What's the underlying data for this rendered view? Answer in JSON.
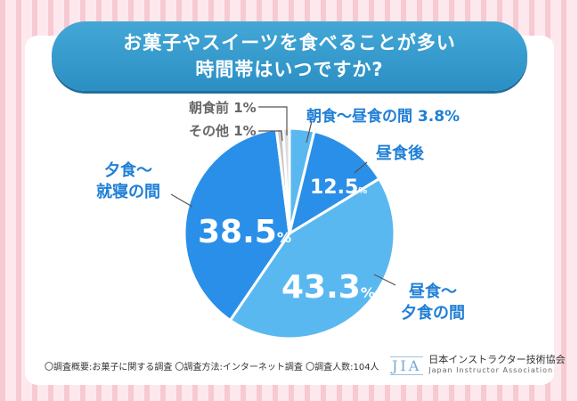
{
  "title": {
    "line1": "お菓子やスイーツを食べることが多い",
    "line2": "時間帯はいつですか?"
  },
  "chart_data": {
    "type": "pie",
    "start_angle_deg": 0,
    "slices": [
      {
        "label": "朝食〜昼食の間",
        "value": 3.8,
        "value_text": "3.8%",
        "color": "#5ab8f0"
      },
      {
        "label": "昼食後",
        "value": 12.5,
        "value_text": "12.5",
        "color": "#2a8fe8"
      },
      {
        "label": "昼食〜夕食の間",
        "value": 43.3,
        "value_text": "43.3",
        "color": "#5ab8f0"
      },
      {
        "label": "夕食〜就寝の間",
        "value": 38.5,
        "value_text": "38.5",
        "color": "#2a8fe8"
      },
      {
        "label": "その他",
        "value": 1,
        "value_text": "1%",
        "color": "#c8c8c8"
      },
      {
        "label": "朝食前",
        "value": 1,
        "value_text": "1%",
        "color": "#dcdcdc"
      }
    ],
    "pct_symbol": "%"
  },
  "labels": {
    "breakfast_lunch": "朝食〜昼食の間 3.8%",
    "after_lunch": "昼食後",
    "lunch_dinner_1": "昼食〜",
    "lunch_dinner_2": "夕食の間",
    "dinner_bed_1": "夕食〜",
    "dinner_bed_2": "就寝の間",
    "before_breakfast_name": "朝食前",
    "before_breakfast_value": "1%",
    "other_name": "その他",
    "other_value": "1%"
  },
  "footer": {
    "note": "〇調査概要:お菓子に関する調査 〇調査方法:インターネット調査 〇調査人数:104人"
  },
  "logo": {
    "mark": "JIA",
    "name_jp": "日本インストラクター技術協会",
    "name_en": "Japan Instructor Association"
  }
}
